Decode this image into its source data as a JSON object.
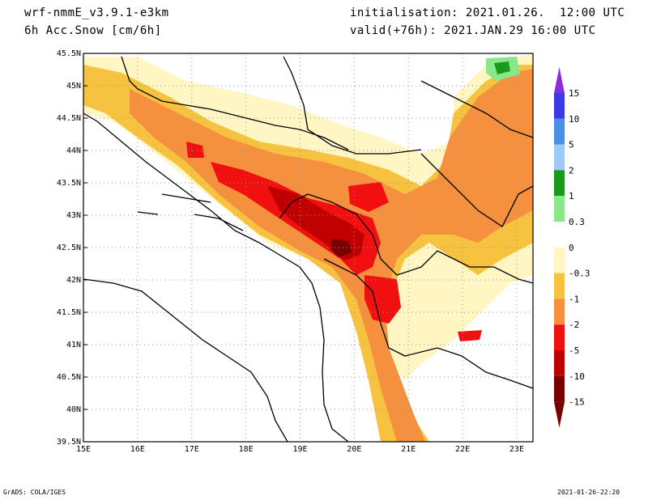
{
  "header": {
    "model": "wrf-nmmE_v3.9.1-e3km",
    "field": "6h Acc.Snow [cm/6h]",
    "init": "initialisation: 2021.01.26.  12:00 UTC",
    "valid": "valid(+76h): 2021.JAN.29 16:00 UTC"
  },
  "map": {
    "lat_ticks": [
      "45.5N",
      "45N",
      "44.5N",
      "44N",
      "43.5N",
      "43N",
      "42.5N",
      "42N",
      "41.5N",
      "41N",
      "40.5N",
      "40N",
      "39.5N"
    ],
    "lon_ticks": [
      "15E",
      "16E",
      "17E",
      "18E",
      "19E",
      "20E",
      "21E",
      "22E",
      "23E"
    ],
    "lon_range": [
      15,
      23.3
    ],
    "lat_range": [
      39.5,
      45.5
    ]
  },
  "legend": {
    "labels": [
      "15",
      "10",
      "5",
      "2",
      "1",
      "0.3",
      "0",
      "-0.3",
      "-1",
      "-2",
      "-5",
      "-10",
      "-15"
    ],
    "colors": [
      "#8a2be2",
      "#3a3ae8",
      "#4a90e8",
      "#9ccaf4",
      "#1a9a1a",
      "#8ae88a",
      "#ffffff",
      "#fff6c4",
      "#f6c240",
      "#f4903e",
      "#f01010",
      "#c00000",
      "#780000"
    ]
  },
  "footer": {
    "left": "GrADS: COLA/IGES",
    "right": "2021-01-26-22:20"
  }
}
